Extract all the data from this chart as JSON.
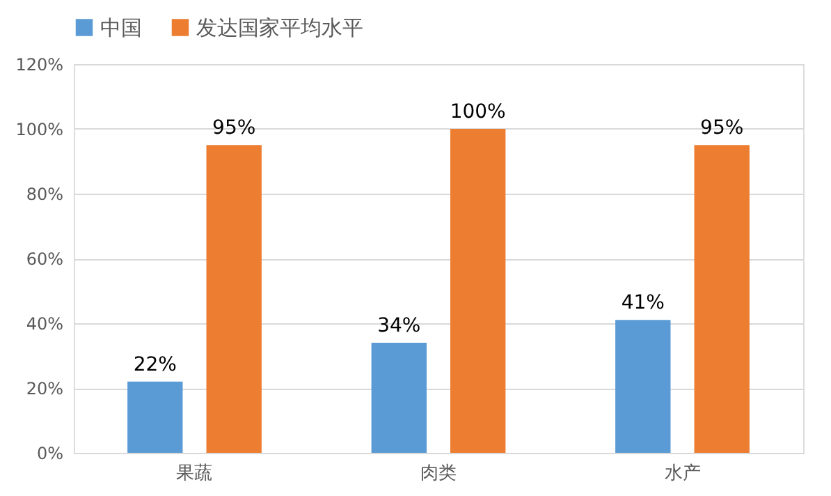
{
  "chart_data": {
    "type": "bar",
    "categories": [
      "果蔬",
      "肉类",
      "水产"
    ],
    "series": [
      {
        "name": "中国",
        "color": "#5b9bd5",
        "values": [
          22,
          34,
          41
        ],
        "value_labels": [
          "22%",
          "34%",
          "41%"
        ]
      },
      {
        "name": "发达国家平均水平",
        "color": "#ed7d31",
        "values": [
          95,
          100,
          95
        ],
        "value_labels": [
          "95%",
          "100%",
          "95%"
        ]
      }
    ],
    "ylim": [
      0,
      120
    ],
    "yticks": [
      {
        "value": 0,
        "label": "0%"
      },
      {
        "value": 20,
        "label": "20%"
      },
      {
        "value": 40,
        "label": "40%"
      },
      {
        "value": 60,
        "label": "60%"
      },
      {
        "value": 80,
        "label": "80%"
      },
      {
        "value": 100,
        "label": "100%"
      },
      {
        "value": 120,
        "label": "120%"
      }
    ],
    "grid": "y",
    "legend": "top"
  }
}
